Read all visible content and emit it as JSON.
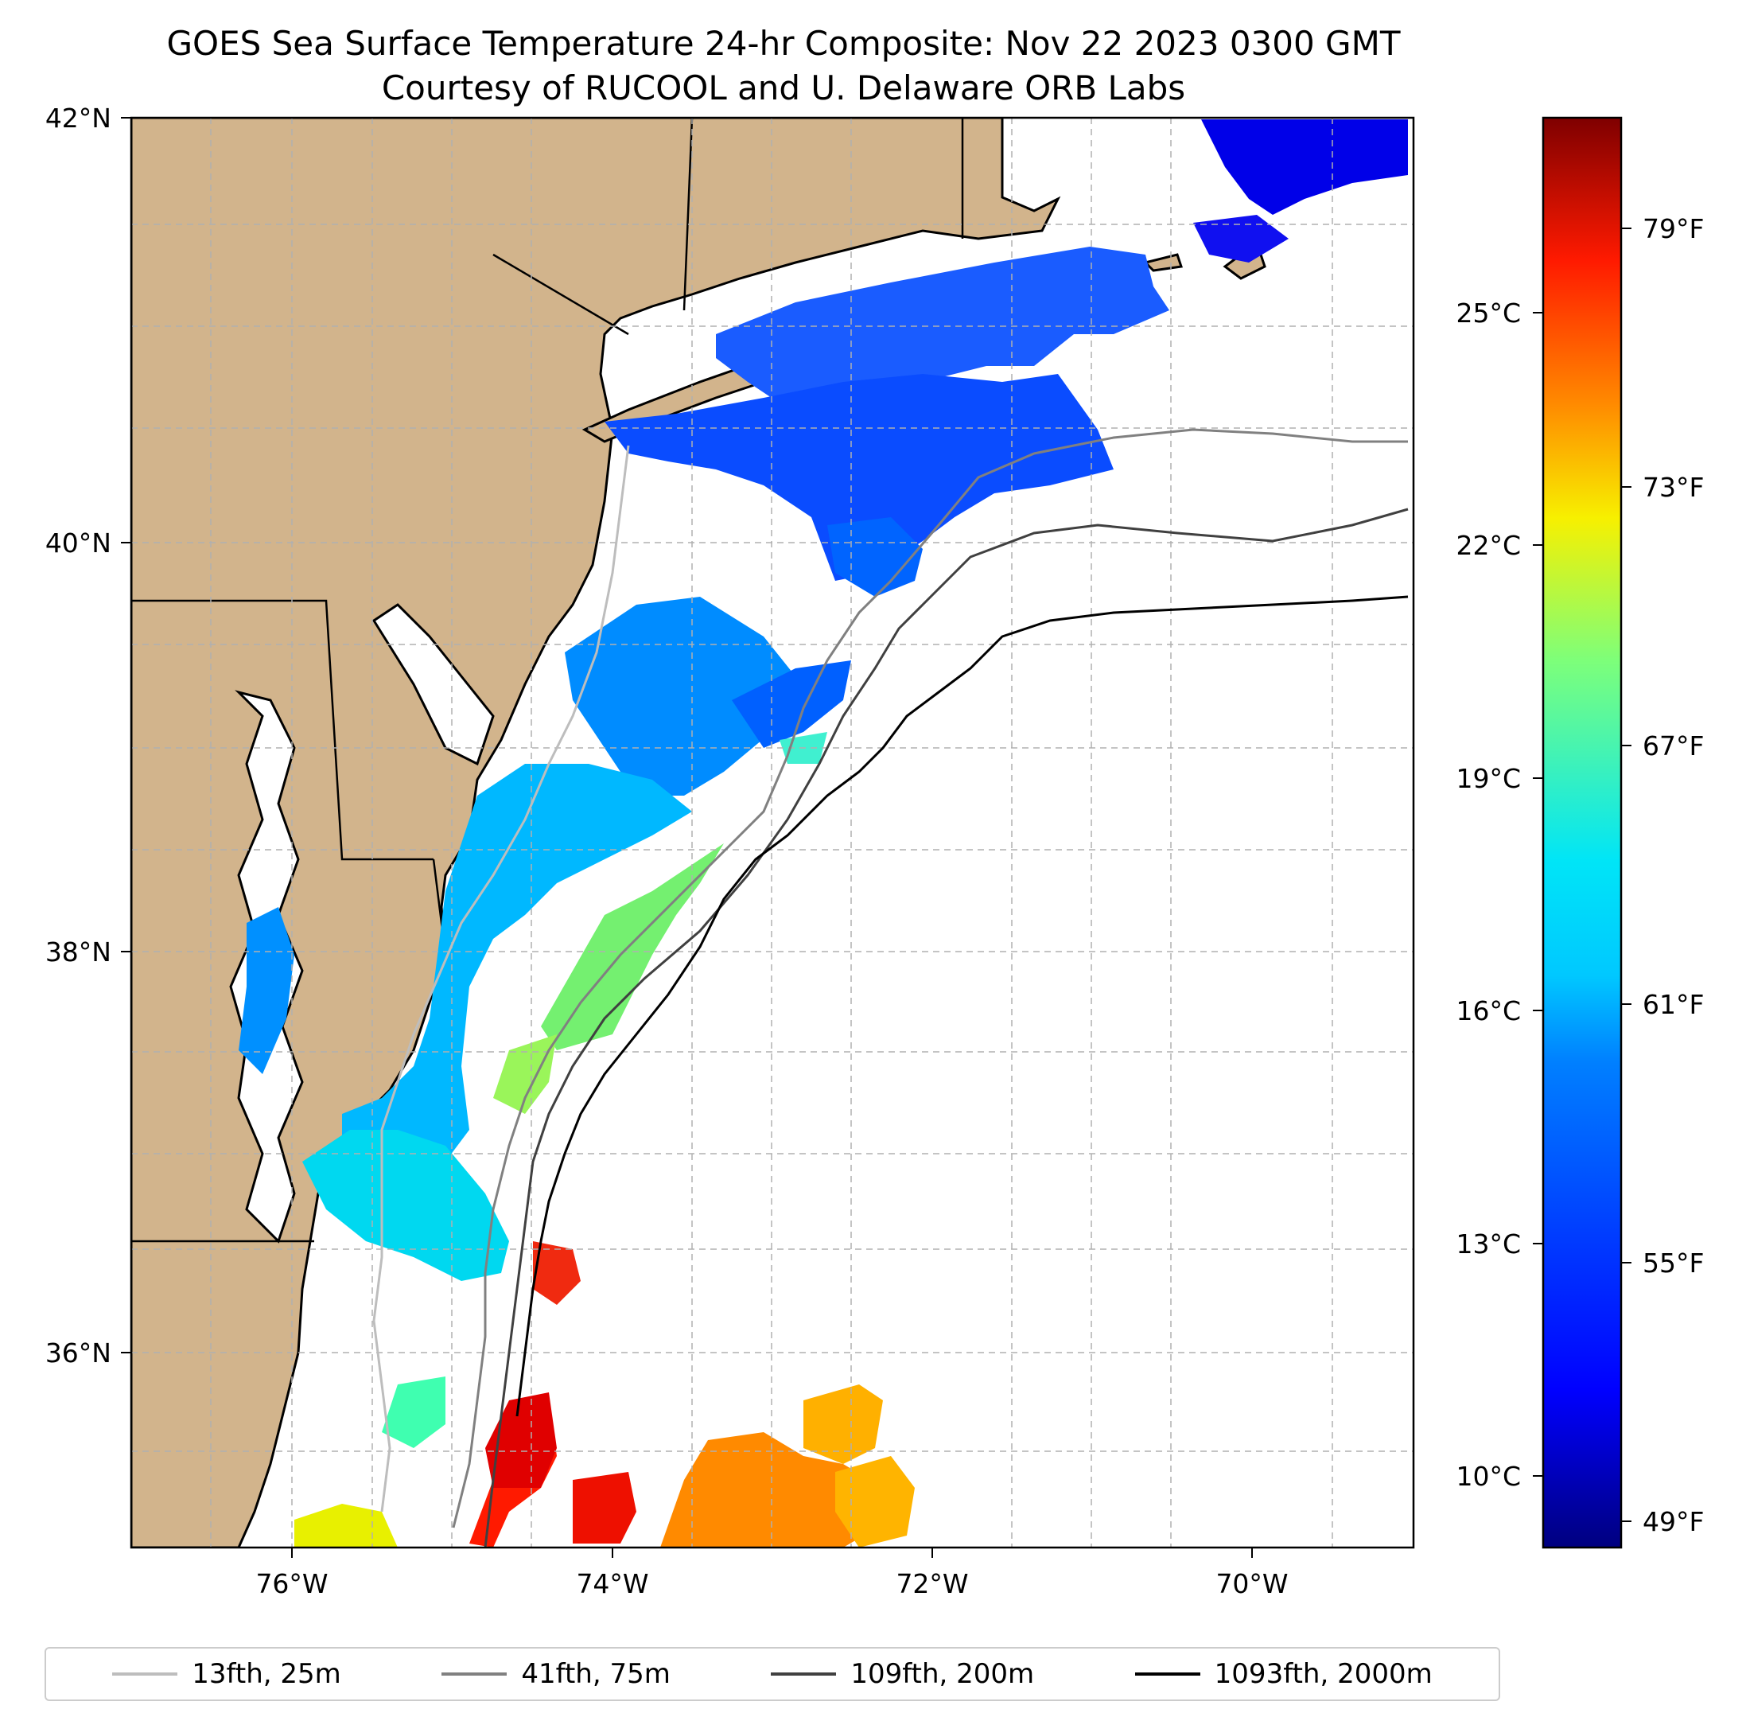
{
  "title": {
    "line1": "GOES Sea Surface Temperature 24-hr Composite: Nov 22 2023 0300 GMT",
    "line2": "Courtesy of RUCOOL and U. Delaware ORB Labs"
  },
  "map": {
    "lon_range": [
      -77,
      -69
    ],
    "lat_range": [
      35,
      42
    ],
    "lat_ticks": [
      "42°N",
      "40°N",
      "38°N",
      "36°N"
    ],
    "lon_ticks": [
      "76°W",
      "74°W",
      "72°W",
      "70°W"
    ],
    "land_color": "#d2b48c",
    "grid": "on"
  },
  "colorbar": {
    "colormap": "jet",
    "celsius_ticks": [
      "25°C",
      "22°C",
      "19°C",
      "16°C",
      "13°C",
      "10°C"
    ],
    "fahrenheit_ticks": [
      "79°F",
      "73°F",
      "67°F",
      "61°F",
      "55°F",
      "49°F"
    ],
    "colors": [
      "#00007f",
      "#0000ff",
      "#0080ff",
      "#00e5f7",
      "#7dff7a",
      "#f7f000",
      "#ff8a00",
      "#ff1a00",
      "#7f0000"
    ]
  },
  "legend": {
    "items": [
      {
        "label": "13fth, 25m",
        "color": "#bdbdbd"
      },
      {
        "label": "41fth, 75m",
        "color": "#808080"
      },
      {
        "label": "109fth, 200m",
        "color": "#404040"
      },
      {
        "label": "1093fth, 2000m",
        "color": "#000000"
      }
    ]
  }
}
